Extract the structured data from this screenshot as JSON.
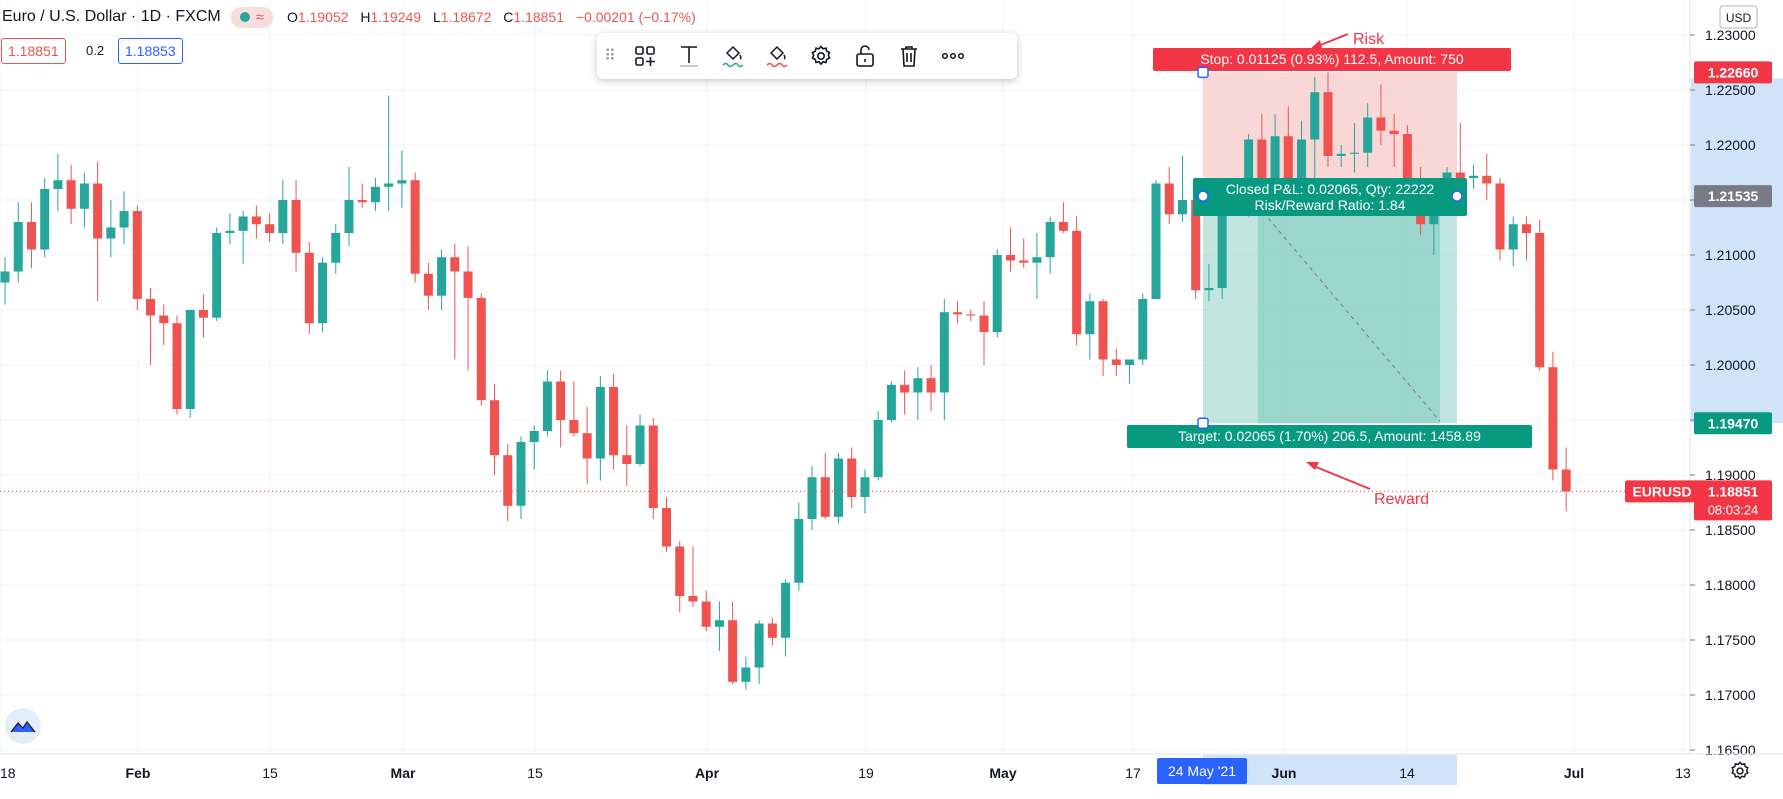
{
  "header": {
    "symbol": "Euro / U.S. Dollar · 1D · FXCM",
    "open_label": "O",
    "open": "1.19052",
    "high_label": "H",
    "high": "1.19249",
    "low_label": "L",
    "low": "1.18672",
    "close_label": "C",
    "close": "1.18851",
    "change": "−0.00201 (−0.17%)"
  },
  "quote": {
    "sell": "1.18851",
    "spread": "0.2",
    "buy": "1.18853"
  },
  "toolbar": {
    "icons": [
      "drag-handle-icon",
      "object-tree-icon",
      "text-icon",
      "fill-green-icon",
      "fill-red-icon",
      "settings-icon",
      "unlock-icon",
      "trash-icon",
      "more-icon"
    ]
  },
  "currency": "USD",
  "chart_data": {
    "type": "candlestick",
    "symbol": "EURUSD",
    "x_ticks": [
      "18",
      "Feb",
      "15",
      "Mar",
      "15",
      "Apr",
      "19",
      "May",
      "17",
      "Jun",
      "14",
      "Jul",
      "13"
    ],
    "y_ticks": [
      "1.23000",
      "1.22500",
      "1.22000",
      "1.21500",
      "1.21000",
      "1.20500",
      "1.20000",
      "1.19500",
      "1.19000",
      "1.18500",
      "1.18000",
      "1.17500",
      "1.17000",
      "1.16500"
    ],
    "ylim": [
      1.165,
      1.232
    ],
    "candles": [
      {
        "o": 1.2075,
        "h": 1.2098,
        "l": 1.2055,
        "c": 1.2085
      },
      {
        "o": 1.2085,
        "h": 1.2148,
        "l": 1.2075,
        "c": 1.213
      },
      {
        "o": 1.213,
        "h": 1.2148,
        "l": 1.2088,
        "c": 1.2105
      },
      {
        "o": 1.2105,
        "h": 1.217,
        "l": 1.2098,
        "c": 1.216
      },
      {
        "o": 1.216,
        "h": 1.2192,
        "l": 1.214,
        "c": 1.2168
      },
      {
        "o": 1.2168,
        "h": 1.2182,
        "l": 1.2128,
        "c": 1.2142
      },
      {
        "o": 1.2142,
        "h": 1.2175,
        "l": 1.2125,
        "c": 1.2165
      },
      {
        "o": 1.2165,
        "h": 1.2185,
        "l": 1.2058,
        "c": 1.2115
      },
      {
        "o": 1.2115,
        "h": 1.215,
        "l": 1.2098,
        "c": 1.2125
      },
      {
        "o": 1.2125,
        "h": 1.2158,
        "l": 1.211,
        "c": 1.214
      },
      {
        "o": 1.214,
        "h": 1.2145,
        "l": 1.205,
        "c": 1.206
      },
      {
        "o": 1.206,
        "h": 1.207,
        "l": 1.2,
        "c": 1.2045
      },
      {
        "o": 1.2045,
        "h": 1.2055,
        "l": 1.2018,
        "c": 1.2038
      },
      {
        "o": 1.2038,
        "h": 1.2045,
        "l": 1.1955,
        "c": 1.196
      },
      {
        "o": 1.196,
        "h": 1.205,
        "l": 1.1952,
        "c": 1.205
      },
      {
        "o": 1.205,
        "h": 1.2064,
        "l": 1.2025,
        "c": 1.2043
      },
      {
        "o": 1.2043,
        "h": 1.2125,
        "l": 1.204,
        "c": 1.212
      },
      {
        "o": 1.212,
        "h": 1.2138,
        "l": 1.211,
        "c": 1.2122
      },
      {
        "o": 1.2122,
        "h": 1.214,
        "l": 1.2092,
        "c": 1.2135
      },
      {
        "o": 1.2135,
        "h": 1.2145,
        "l": 1.2115,
        "c": 1.2128
      },
      {
        "o": 1.2128,
        "h": 1.2138,
        "l": 1.2112,
        "c": 1.212
      },
      {
        "o": 1.212,
        "h": 1.2168,
        "l": 1.211,
        "c": 1.215
      },
      {
        "o": 1.215,
        "h": 1.2168,
        "l": 1.2085,
        "c": 1.2102
      },
      {
        "o": 1.2102,
        "h": 1.2112,
        "l": 1.2028,
        "c": 1.2038
      },
      {
        "o": 1.2038,
        "h": 1.2098,
        "l": 1.203,
        "c": 1.2093
      },
      {
        "o": 1.2093,
        "h": 1.2128,
        "l": 1.2083,
        "c": 1.212
      },
      {
        "o": 1.212,
        "h": 1.218,
        "l": 1.2108,
        "c": 1.215
      },
      {
        "o": 1.215,
        "h": 1.2165,
        "l": 1.2143,
        "c": 1.2148
      },
      {
        "o": 1.2148,
        "h": 1.217,
        "l": 1.214,
        "c": 1.2162
      },
      {
        "o": 1.2162,
        "h": 1.2245,
        "l": 1.214,
        "c": 1.2165
      },
      {
        "o": 1.2165,
        "h": 1.2195,
        "l": 1.2143,
        "c": 1.2168
      },
      {
        "o": 1.2168,
        "h": 1.2175,
        "l": 1.2075,
        "c": 1.2083
      },
      {
        "o": 1.2083,
        "h": 1.2093,
        "l": 1.205,
        "c": 1.2063
      },
      {
        "o": 1.2063,
        "h": 1.2105,
        "l": 1.205,
        "c": 1.2098
      },
      {
        "o": 1.2098,
        "h": 1.211,
        "l": 1.2005,
        "c": 1.2085
      },
      {
        "o": 1.2085,
        "h": 1.2108,
        "l": 1.1995,
        "c": 1.2061
      },
      {
        "o": 1.2061,
        "h": 1.2065,
        "l": 1.1963,
        "c": 1.1968
      },
      {
        "o": 1.1968,
        "h": 1.1983,
        "l": 1.19,
        "c": 1.1918
      },
      {
        "o": 1.1918,
        "h": 1.1928,
        "l": 1.1858,
        "c": 1.1872
      },
      {
        "o": 1.1872,
        "h": 1.1935,
        "l": 1.186,
        "c": 1.193
      },
      {
        "o": 1.193,
        "h": 1.1945,
        "l": 1.1905,
        "c": 1.194
      },
      {
        "o": 1.194,
        "h": 1.1995,
        "l": 1.1935,
        "c": 1.1985
      },
      {
        "o": 1.1985,
        "h": 1.1995,
        "l": 1.1925,
        "c": 1.195
      },
      {
        "o": 1.195,
        "h": 1.1985,
        "l": 1.1935,
        "c": 1.1938
      },
      {
        "o": 1.1938,
        "h": 1.1962,
        "l": 1.1892,
        "c": 1.1915
      },
      {
        "o": 1.1915,
        "h": 1.199,
        "l": 1.1895,
        "c": 1.198
      },
      {
        "o": 1.198,
        "h": 1.1992,
        "l": 1.1905,
        "c": 1.1918
      },
      {
        "o": 1.1918,
        "h": 1.1945,
        "l": 1.189,
        "c": 1.191
      },
      {
        "o": 1.191,
        "h": 1.1955,
        "l": 1.1908,
        "c": 1.1945
      },
      {
        "o": 1.1945,
        "h": 1.1952,
        "l": 1.186,
        "c": 1.187
      },
      {
        "o": 1.187,
        "h": 1.188,
        "l": 1.183,
        "c": 1.1835
      },
      {
        "o": 1.1835,
        "h": 1.184,
        "l": 1.1775,
        "c": 1.179
      },
      {
        "o": 1.179,
        "h": 1.1835,
        "l": 1.178,
        "c": 1.1785
      },
      {
        "o": 1.1785,
        "h": 1.1795,
        "l": 1.1758,
        "c": 1.1762
      },
      {
        "o": 1.1762,
        "h": 1.1785,
        "l": 1.174,
        "c": 1.1768
      },
      {
        "o": 1.1768,
        "h": 1.1785,
        "l": 1.171,
        "c": 1.1712
      },
      {
        "o": 1.1712,
        "h": 1.1735,
        "l": 1.1705,
        "c": 1.1725
      },
      {
        "o": 1.1725,
        "h": 1.1768,
        "l": 1.171,
        "c": 1.1765
      },
      {
        "o": 1.1765,
        "h": 1.177,
        "l": 1.1745,
        "c": 1.1752
      },
      {
        "o": 1.1752,
        "h": 1.1805,
        "l": 1.1735,
        "c": 1.1802
      },
      {
        "o": 1.1802,
        "h": 1.1875,
        "l": 1.1795,
        "c": 1.186
      },
      {
        "o": 1.186,
        "h": 1.1908,
        "l": 1.185,
        "c": 1.1898
      },
      {
        "o": 1.1898,
        "h": 1.192,
        "l": 1.186,
        "c": 1.1862
      },
      {
        "o": 1.1862,
        "h": 1.192,
        "l": 1.1856,
        "c": 1.1915
      },
      {
        "o": 1.1915,
        "h": 1.1925,
        "l": 1.187,
        "c": 1.188
      },
      {
        "o": 1.188,
        "h": 1.1905,
        "l": 1.1865,
        "c": 1.1898
      },
      {
        "o": 1.1898,
        "h": 1.1958,
        "l": 1.1895,
        "c": 1.195
      },
      {
        "o": 1.195,
        "h": 1.1985,
        "l": 1.1948,
        "c": 1.1982
      },
      {
        "o": 1.1982,
        "h": 1.1995,
        "l": 1.1955,
        "c": 1.1975
      },
      {
        "o": 1.1975,
        "h": 1.1998,
        "l": 1.195,
        "c": 1.1988
      },
      {
        "o": 1.1988,
        "h": 1.2,
        "l": 1.1958,
        "c": 1.1975
      },
      {
        "o": 1.1975,
        "h": 1.206,
        "l": 1.195,
        "c": 1.2048
      },
      {
        "o": 1.2048,
        "h": 1.2058,
        "l": 1.2038,
        "c": 1.2046
      },
      {
        "o": 1.2046,
        "h": 1.205,
        "l": 1.204,
        "c": 1.2045
      },
      {
        "o": 1.2045,
        "h": 1.2058,
        "l": 1.2,
        "c": 1.203
      },
      {
        "o": 1.203,
        "h": 1.2105,
        "l": 1.2025,
        "c": 1.21
      },
      {
        "o": 1.21,
        "h": 1.2125,
        "l": 1.2085,
        "c": 1.2095
      },
      {
        "o": 1.2095,
        "h": 1.2115,
        "l": 1.2088,
        "c": 1.2093
      },
      {
        "o": 1.2093,
        "h": 1.212,
        "l": 1.206,
        "c": 1.2098
      },
      {
        "o": 1.2098,
        "h": 1.2135,
        "l": 1.2083,
        "c": 1.213
      },
      {
        "o": 1.213,
        "h": 1.2148,
        "l": 1.212,
        "c": 1.2122
      },
      {
        "o": 1.2122,
        "h": 1.2135,
        "l": 1.2018,
        "c": 1.2028
      },
      {
        "o": 1.2028,
        "h": 1.2065,
        "l": 1.2005,
        "c": 1.2058
      },
      {
        "o": 1.2058,
        "h": 1.206,
        "l": 1.199,
        "c": 1.2005
      },
      {
        "o": 1.2005,
        "h": 1.2015,
        "l": 1.199,
        "c": 1.2
      },
      {
        "o": 1.2,
        "h": 1.2005,
        "l": 1.1983,
        "c": 1.2005
      },
      {
        "o": 1.2005,
        "h": 1.2065,
        "l": 1.2,
        "c": 1.206
      },
      {
        "o": 1.206,
        "h": 1.2168,
        "l": 1.206,
        "c": 1.2165
      },
      {
        "o": 1.2165,
        "h": 1.218,
        "l": 1.2128,
        "c": 1.2137
      },
      {
        "o": 1.2137,
        "h": 1.219,
        "l": 1.213,
        "c": 1.215
      },
      {
        "o": 1.215,
        "h": 1.2152,
        "l": 1.206,
        "c": 1.2068
      },
      {
        "o": 1.2068,
        "h": 1.2092,
        "l": 1.2058,
        "c": 1.207
      },
      {
        "o": 1.207,
        "h": 1.215,
        "l": 1.206,
        "c": 1.2145
      },
      {
        "o": 1.2145,
        "h": 1.2155,
        "l": 1.2142,
        "c": 1.215
      },
      {
        "o": 1.215,
        "h": 1.221,
        "l": 1.2135,
        "c": 1.2205
      },
      {
        "o": 1.2205,
        "h": 1.2228,
        "l": 1.215,
        "c": 1.216
      },
      {
        "o": 1.216,
        "h": 1.2228,
        "l": 1.2145,
        "c": 1.2208
      },
      {
        "o": 1.2208,
        "h": 1.2235,
        "l": 1.2158,
        "c": 1.217
      },
      {
        "o": 1.217,
        "h": 1.2222,
        "l": 1.216,
        "c": 1.2205
      },
      {
        "o": 1.2205,
        "h": 1.2262,
        "l": 1.2165,
        "c": 1.2248
      },
      {
        "o": 1.2248,
        "h": 1.2266,
        "l": 1.218,
        "c": 1.219
      },
      {
        "o": 1.219,
        "h": 1.22,
        "l": 1.218,
        "c": 1.2192
      },
      {
        "o": 1.2192,
        "h": 1.222,
        "l": 1.2175,
        "c": 1.2193
      },
      {
        "o": 1.2193,
        "h": 1.2238,
        "l": 1.218,
        "c": 1.2225
      },
      {
        "o": 1.2225,
        "h": 1.2255,
        "l": 1.22,
        "c": 1.2213
      },
      {
        "o": 1.2213,
        "h": 1.2228,
        "l": 1.218,
        "c": 1.221
      },
      {
        "o": 1.221,
        "h": 1.2218,
        "l": 1.2158,
        "c": 1.2168
      },
      {
        "o": 1.2168,
        "h": 1.218,
        "l": 1.2118,
        "c": 1.2128
      },
      {
        "o": 1.2128,
        "h": 1.215,
        "l": 1.21,
        "c": 1.2145
      },
      {
        "o": 1.2145,
        "h": 1.218,
        "l": 1.214,
        "c": 1.2175
      },
      {
        "o": 1.2175,
        "h": 1.222,
        "l": 1.215,
        "c": 1.217
      },
      {
        "o": 1.217,
        "h": 1.2182,
        "l": 1.216,
        "c": 1.2172
      },
      {
        "o": 1.2172,
        "h": 1.2192,
        "l": 1.215,
        "c": 1.2165
      },
      {
        "o": 1.2165,
        "h": 1.217,
        "l": 1.2095,
        "c": 1.2105
      },
      {
        "o": 1.2105,
        "h": 1.2135,
        "l": 1.209,
        "c": 1.2128
      },
      {
        "o": 1.2128,
        "h": 1.2135,
        "l": 1.2095,
        "c": 1.212
      },
      {
        "o": 1.212,
        "h": 1.2132,
        "l": 1.1995,
        "c": 1.1998
      },
      {
        "o": 1.1998,
        "h": 1.2012,
        "l": 1.1895,
        "c": 1.1905
      },
      {
        "o": 1.1905,
        "h": 1.1925,
        "l": 1.1867,
        "c": 1.1885
      }
    ],
    "position": {
      "type": "short",
      "entry": 1.21535,
      "stop": 1.2266,
      "target": 1.1947,
      "start_index": 103,
      "end_index": 122,
      "stop_label": "Stop: 0.01125 (0.93%) 112.5, Amount: 750",
      "pnl_label": "Closed P&L: 0.02065, Qty: 22222",
      "rr_label": "Risk/Reward Ratio: 1.84",
      "target_label": "Target: 0.02065 (1.70%) 206.5, Amount: 1458.89"
    },
    "annotations": {
      "risk": "Risk",
      "reward": "Reward"
    },
    "price_tags": {
      "stop": "1.22660",
      "entry": "1.21535",
      "target": "1.19470",
      "last_symbol": "EURUSD",
      "last": "1.18851",
      "countdown": "08:03:24"
    },
    "time_highlight_label": "24 May '21",
    "colors": {
      "up": "#26a69a",
      "down": "#ef5350",
      "risk": "#f8c9c9",
      "reward": "#a6dbd2",
      "grid": "#f0f3fa"
    }
  }
}
